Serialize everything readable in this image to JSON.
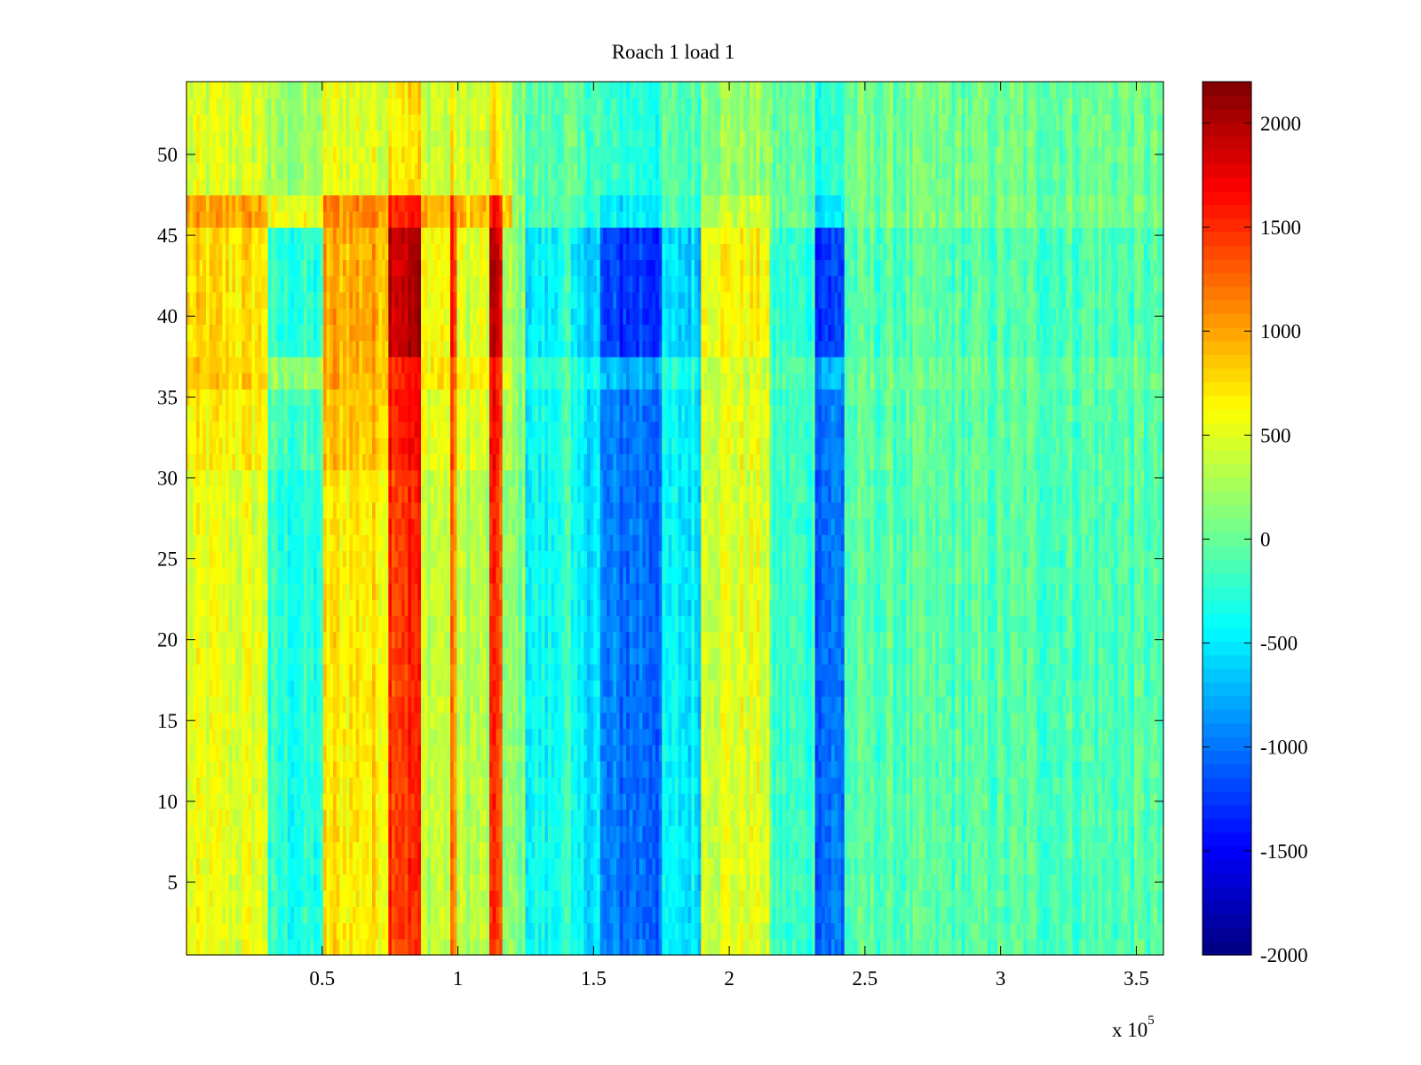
{
  "chart_data": {
    "type": "heatmap",
    "title": "Roach 1 load 1",
    "xlabel": "",
    "ylabel": "",
    "x_exponent_label": {
      "base": "x 10",
      "power": "5"
    },
    "xlim": [
      0,
      3.6
    ],
    "ylim": [
      0.5,
      54.5
    ],
    "x_ticks": [
      {
        "value": 0.5,
        "label": "0.5"
      },
      {
        "value": 1,
        "label": "1"
      },
      {
        "value": 1.5,
        "label": "1.5"
      },
      {
        "value": 2,
        "label": "2"
      },
      {
        "value": 2.5,
        "label": "2.5"
      },
      {
        "value": 3,
        "label": "3"
      },
      {
        "value": 3.5,
        "label": "3.5"
      }
    ],
    "y_ticks": [
      {
        "value": 5,
        "label": "5"
      },
      {
        "value": 10,
        "label": "10"
      },
      {
        "value": 15,
        "label": "15"
      },
      {
        "value": 20,
        "label": "20"
      },
      {
        "value": 25,
        "label": "25"
      },
      {
        "value": 30,
        "label": "30"
      },
      {
        "value": 35,
        "label": "35"
      },
      {
        "value": 40,
        "label": "40"
      },
      {
        "value": 45,
        "label": "45"
      },
      {
        "value": 50,
        "label": "50"
      }
    ],
    "colorbar": {
      "colormap": "jet",
      "range": [
        -2000,
        2200
      ],
      "ticks": [
        {
          "value": 2000,
          "label": "2000"
        },
        {
          "value": 1500,
          "label": "1500"
        },
        {
          "value": 1000,
          "label": "1000"
        },
        {
          "value": 500,
          "label": "500"
        },
        {
          "value": 0,
          "label": "0"
        },
        {
          "value": -500,
          "label": "-500"
        },
        {
          "value": -1000,
          "label": "-1000"
        },
        {
          "value": -1500,
          "label": "-1500"
        },
        {
          "value": -2000,
          "label": "-2000"
        }
      ]
    },
    "rows": 54,
    "grid": false,
    "column_bands": [
      {
        "x": [
          0.0,
          0.3
        ],
        "value": 500
      },
      {
        "x": [
          0.3,
          0.5
        ],
        "value": -300
      },
      {
        "x": [
          0.5,
          0.75
        ],
        "value": 700
      },
      {
        "x": [
          0.75,
          0.87
        ],
        "value": 1500
      },
      {
        "x": [
          0.87,
          0.97
        ],
        "value": 400
      },
      {
        "x": [
          0.97,
          1.0
        ],
        "value": 1100
      },
      {
        "x": [
          1.0,
          1.12
        ],
        "value": 300
      },
      {
        "x": [
          1.12,
          1.16
        ],
        "value": 1400
      },
      {
        "x": [
          1.16,
          1.25
        ],
        "value": 100
      },
      {
        "x": [
          1.25,
          1.37
        ],
        "value": -400
      },
      {
        "x": [
          1.37,
          1.42
        ],
        "value": -200
      },
      {
        "x": [
          1.42,
          1.52
        ],
        "value": -500
      },
      {
        "x": [
          1.52,
          1.75
        ],
        "value": -1000
      },
      {
        "x": [
          1.75,
          1.9
        ],
        "value": -500
      },
      {
        "x": [
          1.9,
          2.15
        ],
        "value": 500
      },
      {
        "x": [
          2.15,
          2.32
        ],
        "value": -200
      },
      {
        "x": [
          2.32,
          2.42
        ],
        "value": -1000
      },
      {
        "x": [
          2.42,
          3.6
        ],
        "value": -100
      }
    ],
    "row_bands": [
      {
        "y": [
          0.5,
          30.5
        ],
        "factor": 1.0,
        "offset": 0
      },
      {
        "y": [
          30.5,
          35.5
        ],
        "factor": 1.0,
        "offset": 150
      },
      {
        "y": [
          35.5,
          37.5
        ],
        "factor": 0.8,
        "offset": 400
      },
      {
        "y": [
          37.5,
          45.5
        ],
        "factor": 1.25,
        "offset": 100
      },
      {
        "y": [
          45.5,
          47.5
        ],
        "factor": 0.6,
        "offset": 700
      },
      {
        "y": [
          47.5,
          54.5
        ],
        "factor": 0.3,
        "offset": 300
      }
    ]
  }
}
